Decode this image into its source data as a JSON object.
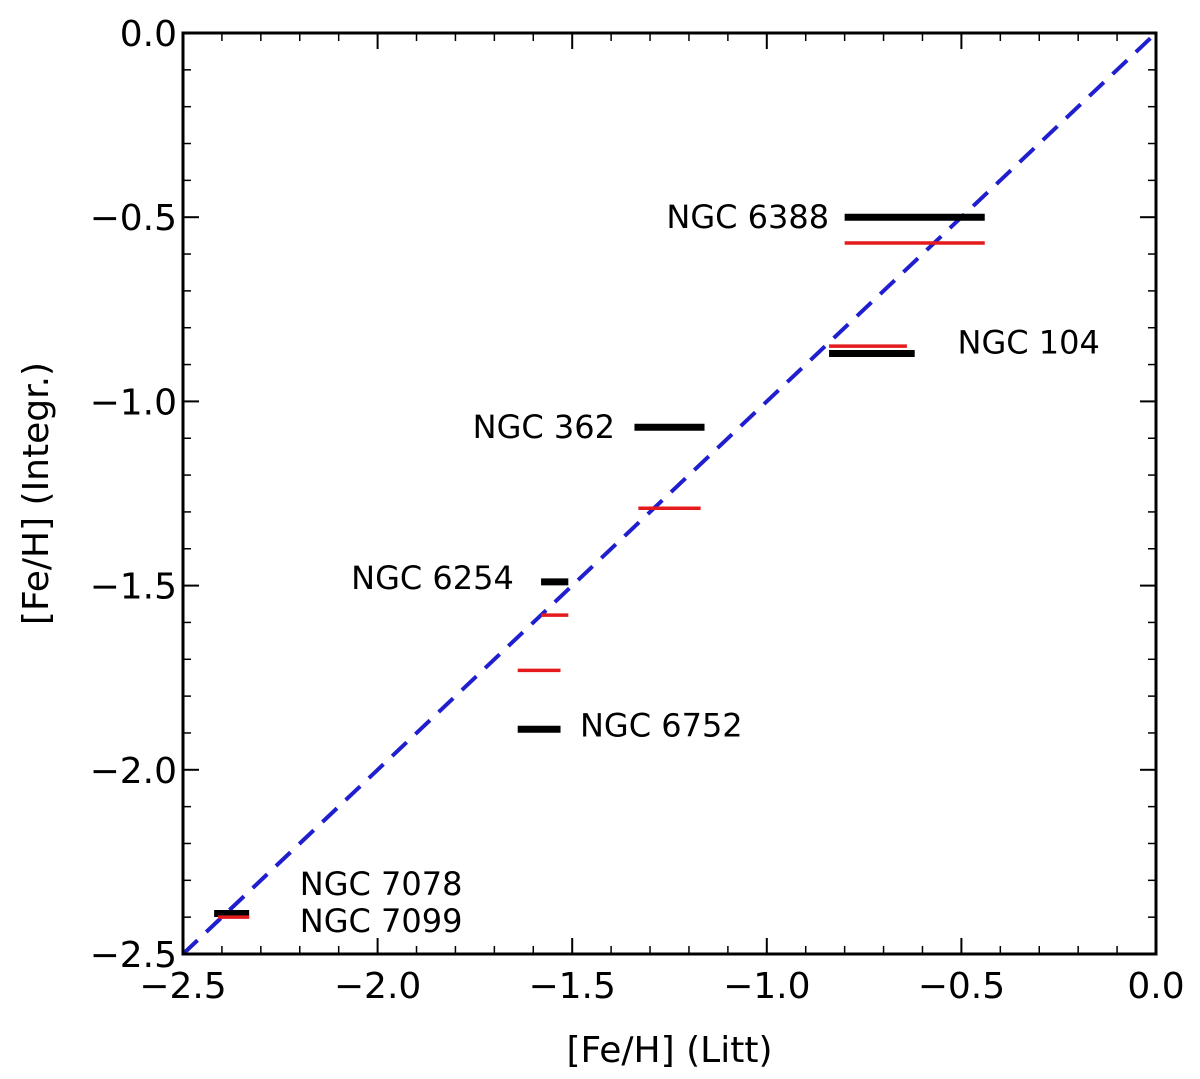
{
  "chart_data": {
    "type": "line",
    "title": "",
    "xlabel": "[Fe/H] (Litt)",
    "ylabel": "[Fe/H] (Integr.)",
    "xlim": [
      -2.5,
      0.0
    ],
    "ylim": [
      -2.5,
      0.0
    ],
    "xticks": [
      "−2.5",
      "−2.0",
      "−1.5",
      "−1.0",
      "−0.5",
      "0.0"
    ],
    "yticks": [
      "−2.5",
      "−2.0",
      "−1.5",
      "−1.0",
      "−0.5",
      "0.0"
    ],
    "grid": false,
    "colors": {
      "black": "#000000",
      "red": "#e41a1c",
      "one_to_one": "#1f1fcf"
    },
    "one_to_one_line": {
      "from": [
        -2.5,
        -2.5
      ],
      "to": [
        0.0,
        0.0
      ],
      "style": "dashed"
    },
    "segments": [
      {
        "color": "black",
        "x_range": [
          -0.8,
          -0.44
        ],
        "y": -0.5
      },
      {
        "color": "red",
        "x_range": [
          -0.8,
          -0.44
        ],
        "y": -0.57
      },
      {
        "color": "red",
        "x_range": [
          -0.84,
          -0.64
        ],
        "y": -0.85
      },
      {
        "color": "black",
        "x_range": [
          -0.84,
          -0.62
        ],
        "y": -0.87
      },
      {
        "color": "black",
        "x_range": [
          -1.34,
          -1.16
        ],
        "y": -1.07
      },
      {
        "color": "red",
        "x_range": [
          -1.33,
          -1.17
        ],
        "y": -1.29
      },
      {
        "color": "black",
        "x_range": [
          -1.58,
          -1.51
        ],
        "y": -1.49
      },
      {
        "color": "red",
        "x_range": [
          -1.58,
          -1.51
        ],
        "y": -1.58
      },
      {
        "color": "red",
        "x_range": [
          -1.64,
          -1.53
        ],
        "y": -1.73
      },
      {
        "color": "black",
        "x_range": [
          -1.64,
          -1.53
        ],
        "y": -1.89
      },
      {
        "color": "black",
        "x_range": [
          -2.42,
          -2.33
        ],
        "y": -2.39
      },
      {
        "color": "red",
        "x_range": [
          -2.41,
          -2.33
        ],
        "y": -2.4
      }
    ],
    "annotations": [
      {
        "text": "NGC 6388",
        "x": -0.84,
        "y": -0.5,
        "anchor": "end"
      },
      {
        "text": "NGC 104",
        "x": -0.51,
        "y": -0.84,
        "anchor": "start"
      },
      {
        "text": "NGC 362",
        "x": -1.39,
        "y": -1.07,
        "anchor": "end"
      },
      {
        "text": "NGC 6254",
        "x": -1.65,
        "y": -1.48,
        "anchor": "end"
      },
      {
        "text": "NGC 6752",
        "x": -1.48,
        "y": -1.88,
        "anchor": "start"
      },
      {
        "text": "NGC 7078",
        "x": -2.2,
        "y": -2.31,
        "anchor": "start"
      },
      {
        "text": "NGC 7099",
        "x": -2.2,
        "y": -2.41,
        "anchor": "start"
      }
    ]
  }
}
